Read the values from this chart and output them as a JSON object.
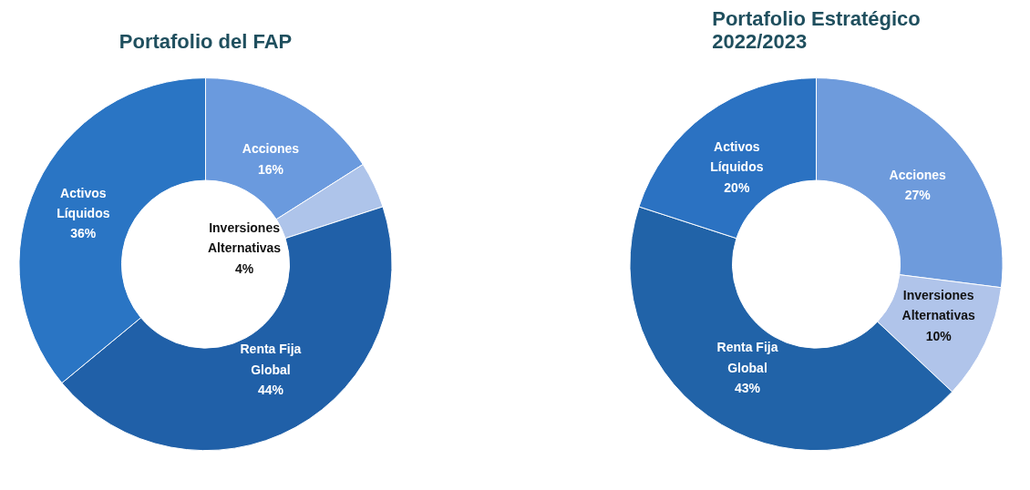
{
  "chart_data": [
    {
      "type": "donut",
      "title": "Portafolio del FAP",
      "categories": [
        "Acciones",
        "Inversiones Alternativas",
        "Renta Fija Global",
        "Activos Líquidos"
      ],
      "values": [
        16,
        4,
        44,
        36
      ],
      "colors": [
        "#6a9ade",
        "#aec4ea",
        "#2060a8",
        "#2a75c4"
      ],
      "value_labels": [
        "16%",
        "4%",
        "44%",
        "36%"
      ],
      "legend": false
    },
    {
      "type": "donut",
      "title": "Portafolio Estratégico\n2022/2023",
      "categories": [
        "Acciones",
        "Inversiones Alternativas",
        "Renta Fija Global",
        "Activos Líquidos"
      ],
      "values": [
        27,
        10,
        43,
        20
      ],
      "colors": [
        "#6e9bdc",
        "#b0c4ea",
        "#2163a8",
        "#2b72c2"
      ],
      "value_labels": [
        "27%",
        "10%",
        "43%",
        "20%"
      ],
      "legend": false
    }
  ]
}
